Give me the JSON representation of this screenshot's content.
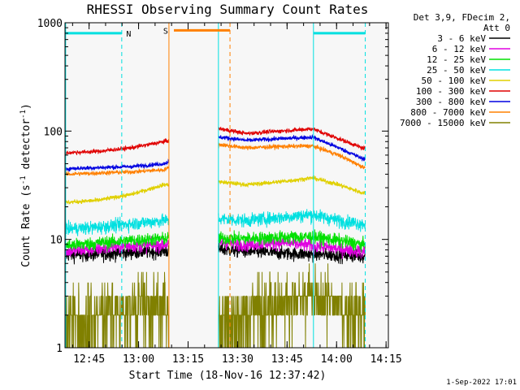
{
  "chart_data": {
    "type": "line",
    "title": "RHESSI Observing Summary Count Rates",
    "xlabel": "Start Time (18-Nov-16 12:37:42)",
    "ylabel_main": "Count Rate (s",
    "ylabel_sup1": "-1",
    "ylabel_mid": " detector",
    "ylabel_sup2": "-1",
    "ylabel_end": ")",
    "yscale": "log",
    "ylim": [
      1,
      1000
    ],
    "xlim_min": [
      0,
      98
    ],
    "x_ticks": [
      {
        "min": 7.3,
        "label": "12:45"
      },
      {
        "min": 22.3,
        "label": "13:00"
      },
      {
        "min": 37.3,
        "label": "13:15"
      },
      {
        "min": 52.3,
        "label": "13:30"
      },
      {
        "min": 67.3,
        "label": "13:45"
      },
      {
        "min": 82.3,
        "label": "14:00"
      },
      {
        "min": 97.3,
        "label": "14:15"
      }
    ],
    "y_ticks": [
      {
        "value": 1,
        "label": "1"
      },
      {
        "value": 10,
        "label": "10"
      },
      {
        "value": 100,
        "label": "100"
      },
      {
        "value": 1000,
        "label": "1000"
      }
    ],
    "legend_header": [
      "Det 3,9, FDecim 2,",
      "Att 0"
    ],
    "series": [
      {
        "name": "3 - 6 keV",
        "color": "#000000",
        "values": [
          {
            "t": 0.5,
            "v": 7.2
          },
          {
            "t": 10,
            "v": 7.3
          },
          {
            "t": 20,
            "v": 7.6
          },
          {
            "t": 30,
            "v": 7.8
          },
          {
            "t": 47,
            "v": 8.1
          },
          {
            "t": 55,
            "v": 7.8
          },
          {
            "t": 65,
            "v": 7.5
          },
          {
            "t": 75,
            "v": 7.3
          },
          {
            "t": 83,
            "v": 7.2
          },
          {
            "t": 90,
            "v": 7.0
          }
        ]
      },
      {
        "name": "6 - 12 keV",
        "color": "#e000e0",
        "values": [
          {
            "t": 0.5,
            "v": 7.8
          },
          {
            "t": 10,
            "v": 8.2
          },
          {
            "t": 20,
            "v": 8.8
          },
          {
            "t": 30,
            "v": 9.0
          },
          {
            "t": 47,
            "v": 9.5
          },
          {
            "t": 55,
            "v": 9.0
          },
          {
            "t": 65,
            "v": 9.4
          },
          {
            "t": 75,
            "v": 8.8
          },
          {
            "t": 83,
            "v": 8.2
          },
          {
            "t": 90,
            "v": 7.8
          }
        ]
      },
      {
        "name": "12 - 25 keV",
        "color": "#00e000",
        "values": [
          {
            "t": 0.5,
            "v": 8.8
          },
          {
            "t": 10,
            "v": 9.3
          },
          {
            "t": 20,
            "v": 9.8
          },
          {
            "t": 30,
            "v": 10.2
          },
          {
            "t": 47,
            "v": 10.3
          },
          {
            "t": 55,
            "v": 10.2
          },
          {
            "t": 65,
            "v": 10.5
          },
          {
            "t": 75,
            "v": 10.6
          },
          {
            "t": 83,
            "v": 9.8
          },
          {
            "t": 90,
            "v": 9.0
          }
        ]
      },
      {
        "name": "25 - 50 keV",
        "color": "#00e0e0",
        "values": [
          {
            "t": 0.5,
            "v": 12.5
          },
          {
            "t": 10,
            "v": 13.0
          },
          {
            "t": 20,
            "v": 14.0
          },
          {
            "t": 30,
            "v": 15.0
          },
          {
            "t": 47,
            "v": 15.5
          },
          {
            "t": 55,
            "v": 15.0
          },
          {
            "t": 65,
            "v": 16.0
          },
          {
            "t": 75,
            "v": 17.0
          },
          {
            "t": 83,
            "v": 15.0
          },
          {
            "t": 90,
            "v": 14.0
          }
        ]
      },
      {
        "name": "50 - 100 keV",
        "color": "#e0d000",
        "values": [
          {
            "t": 0.5,
            "v": 22
          },
          {
            "t": 10,
            "v": 23
          },
          {
            "t": 20,
            "v": 26
          },
          {
            "t": 30,
            "v": 32
          },
          {
            "t": 47,
            "v": 34
          },
          {
            "t": 55,
            "v": 32
          },
          {
            "t": 65,
            "v": 34
          },
          {
            "t": 75,
            "v": 37
          },
          {
            "t": 83,
            "v": 32
          },
          {
            "t": 90,
            "v": 27
          }
        ]
      },
      {
        "name": "100 - 300 keV",
        "color": "#e00000",
        "values": [
          {
            "t": 0.5,
            "v": 63
          },
          {
            "t": 10,
            "v": 65
          },
          {
            "t": 20,
            "v": 70
          },
          {
            "t": 30,
            "v": 80
          },
          {
            "t": 47,
            "v": 105
          },
          {
            "t": 55,
            "v": 95
          },
          {
            "t": 65,
            "v": 100
          },
          {
            "t": 75,
            "v": 105
          },
          {
            "t": 83,
            "v": 85
          },
          {
            "t": 90,
            "v": 70
          }
        ]
      },
      {
        "name": "300 - 800 keV",
        "color": "#0000e0",
        "values": [
          {
            "t": 0.5,
            "v": 45
          },
          {
            "t": 10,
            "v": 46
          },
          {
            "t": 20,
            "v": 47
          },
          {
            "t": 30,
            "v": 50
          },
          {
            "t": 47,
            "v": 88
          },
          {
            "t": 55,
            "v": 82
          },
          {
            "t": 65,
            "v": 85
          },
          {
            "t": 75,
            "v": 88
          },
          {
            "t": 83,
            "v": 70
          },
          {
            "t": 90,
            "v": 56
          }
        ]
      },
      {
        "name": "800 - 7000 keV",
        "color": "#ff8000",
        "values": [
          {
            "t": 0.5,
            "v": 40
          },
          {
            "t": 10,
            "v": 41
          },
          {
            "t": 20,
            "v": 42
          },
          {
            "t": 30,
            "v": 44
          },
          {
            "t": 47,
            "v": 75
          },
          {
            "t": 55,
            "v": 70
          },
          {
            "t": 65,
            "v": 72
          },
          {
            "t": 75,
            "v": 73
          },
          {
            "t": 83,
            "v": 60
          },
          {
            "t": 90,
            "v": 47
          }
        ]
      },
      {
        "name": "7000 - 15000 keV",
        "color": "#808000",
        "values": [
          {
            "t": 0.5,
            "v": 1.8
          },
          {
            "t": 10,
            "v": 1.9
          },
          {
            "t": 20,
            "v": 2.2
          },
          {
            "t": 30,
            "v": 2.3
          },
          {
            "t": 47,
            "v": 1.9
          },
          {
            "t": 55,
            "v": 2.0
          },
          {
            "t": 65,
            "v": 2.6
          },
          {
            "t": 75,
            "v": 2.9
          },
          {
            "t": 83,
            "v": 2.4
          },
          {
            "t": 90,
            "v": 2.0
          }
        ]
      }
    ],
    "data_segments": [
      [
        0,
        31.5
      ],
      [
        46.5,
        91
      ]
    ],
    "annotations": {
      "night_label": "N",
      "saa_label": "S",
      "cyan_color": "#00e0e0",
      "orange_color": "#ff8000",
      "night_bars": [
        [
          0,
          17.2
        ],
        [
          75.3,
          91
        ]
      ],
      "saa_bar": [
        33,
        50
      ],
      "night_bar_value": 800,
      "saa_bar_value": 850,
      "solid_lines": [
        {
          "t": 31.5,
          "color": "#ff8000"
        },
        {
          "t": 46.5,
          "color": "#00e0e0"
        },
        {
          "t": 75.3,
          "color": "#00e0e0"
        }
      ],
      "dashed_lines": [
        {
          "t": 17.2,
          "color": "#00e0e0"
        },
        {
          "t": 50,
          "color": "#ff8000"
        },
        {
          "t": 91,
          "color": "#00e0e0"
        }
      ],
      "night_label_t": 19.3,
      "saa_label_t": 30.5
    },
    "footer_date": "1-Sep-2022 17:01"
  }
}
